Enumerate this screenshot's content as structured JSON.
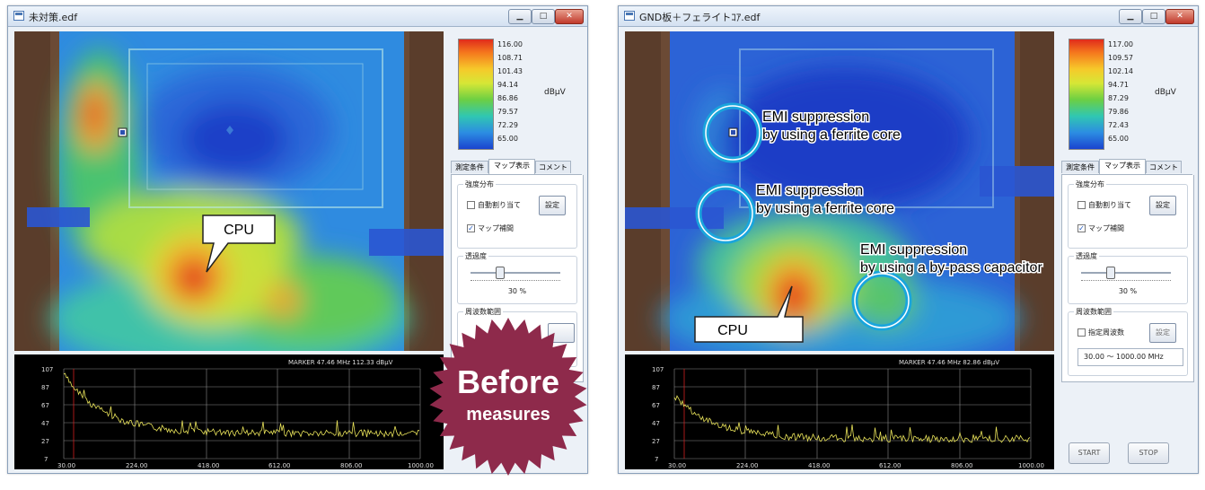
{
  "left_window": {
    "title": "未対策.edf",
    "annotation_cpu": "CPU",
    "scale": {
      "ticks": [
        "116.00",
        "108.71",
        "101.43",
        "94.14",
        "86.86",
        "79.57",
        "72.29",
        "65.00"
      ],
      "unit": "dBμV"
    },
    "tabs": [
      "測定条件",
      "マップ表示",
      "コメント"
    ],
    "group_intensity": "強度分布",
    "auto_assign": "自動割り当て",
    "settings_button": "設定",
    "map_interp": "マップ補間",
    "transparency_label": "透過度",
    "transparency_value": "30 %",
    "freq_range_label": "周波数範囲",
    "marker_text": "MARKER    47.46 MHz   112.33 dBμV",
    "y_ticks": [
      "107",
      "87",
      "67",
      "47",
      "27",
      "7"
    ],
    "x_ticks": [
      "30.00",
      "224.00",
      "418.00",
      "612.00",
      "806.00",
      "1000.00"
    ],
    "badge_main": "Before",
    "badge_sub": "measures"
  },
  "right_window": {
    "title": "GND板＋フェライトｺｱ.edf",
    "annotation_cpu": "CPU",
    "annotations": [
      {
        "line1": "EMI suppression",
        "line2": "by using a ferrite core"
      },
      {
        "line1": "EMI suppression",
        "line2": "by using a ferrite core"
      },
      {
        "line1": "EMI suppression",
        "line2": "by using a by-pass capacitor"
      }
    ],
    "scale": {
      "ticks": [
        "117.00",
        "109.57",
        "102.14",
        "94.71",
        "87.29",
        "79.86",
        "72.43",
        "65.00"
      ],
      "unit": "dBμV"
    },
    "tabs": [
      "測定条件",
      "マップ表示",
      "コメント"
    ],
    "group_intensity": "強度分布",
    "auto_assign": "自動割り当て",
    "settings_button": "設定",
    "map_interp": "マップ補間",
    "transparency_label": "透過度",
    "transparency_value": "30 %",
    "freq_range_label": "周波数範囲",
    "specified_freq": "指定周波数",
    "freq_settings_button": "設定",
    "freq_range_value": "30.00 〜 1000.00 MHz",
    "marker_text": "MARKER    47.46 MHz   82.86 dBμV",
    "y_ticks": [
      "107",
      "87",
      "67",
      "47",
      "27",
      "7"
    ],
    "x_ticks": [
      "30.00",
      "224.00",
      "418.00",
      "612.00",
      "806.00",
      "1000.00"
    ],
    "start_button": "START",
    "stop_button": "STOP"
  },
  "colors": {
    "badge": "#8e2a4b",
    "ring": "#1aa5dc",
    "trace": "#e8e25a"
  }
}
